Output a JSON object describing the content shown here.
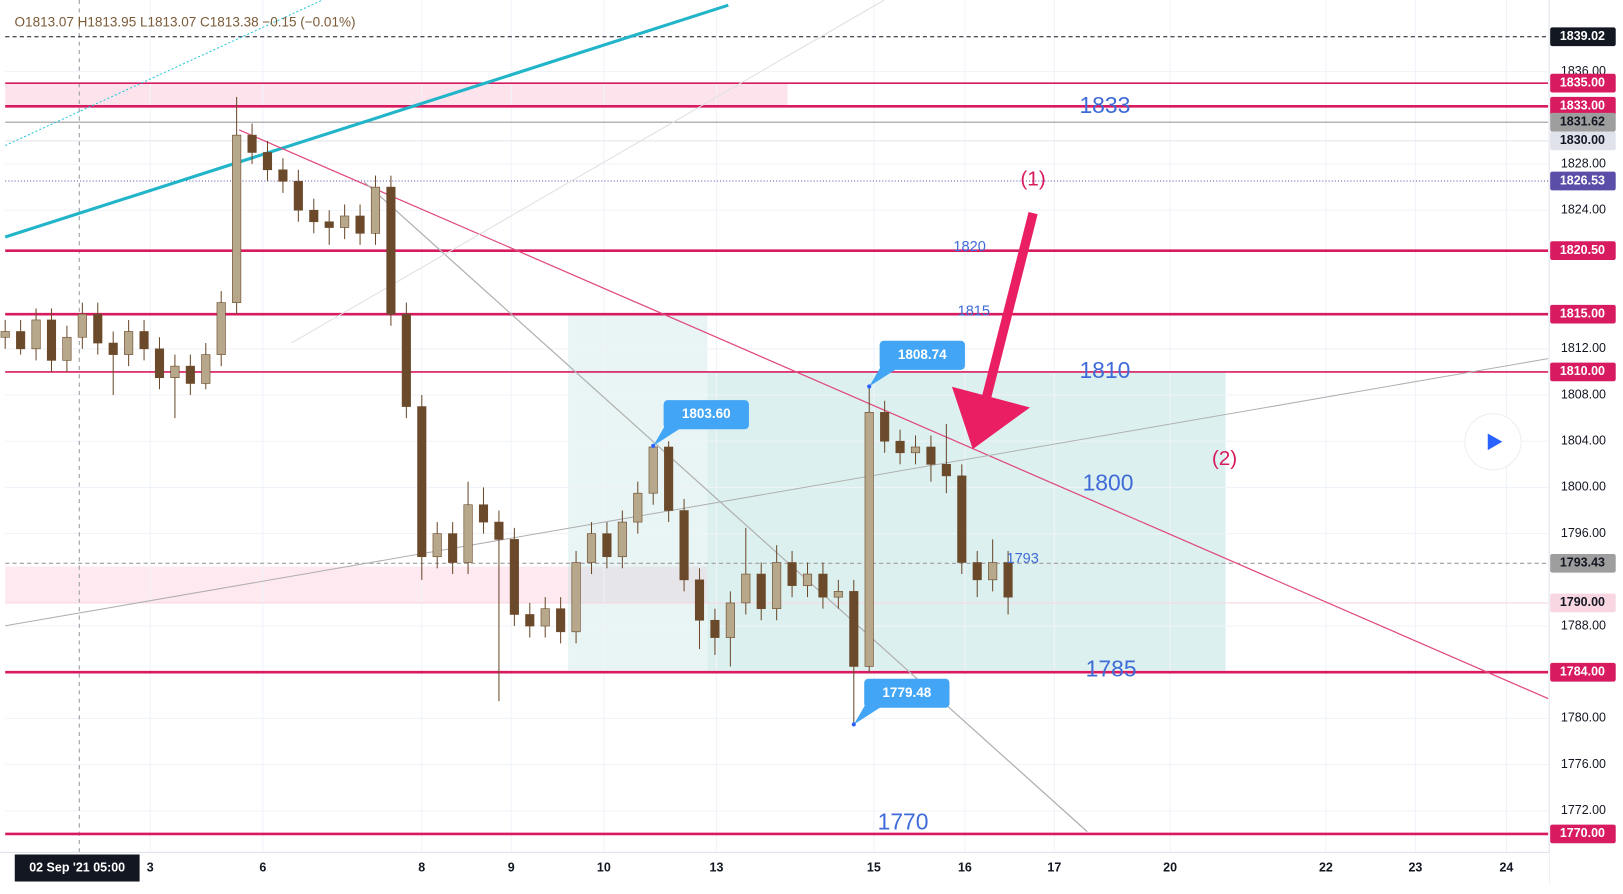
{
  "chart_data": {
    "type": "candlestick",
    "header": "O1813.07 H1813.95 L1813.07 C1813.38 −0.15 (−0.01%)",
    "up_color": "#b7a88c",
    "down_color": "#6b4a2b",
    "xlim": [
      0,
      100
    ],
    "ylim": [
      1768.4,
      1842.2
    ],
    "x": [
      0,
      1,
      2,
      3,
      4,
      5,
      6,
      7,
      8,
      9,
      10,
      11,
      12,
      13,
      14,
      15,
      16,
      17,
      18,
      19,
      20,
      21,
      22,
      23,
      24,
      25,
      26,
      27,
      28,
      29,
      30,
      31,
      32,
      33,
      34,
      35,
      36,
      37,
      38,
      39,
      40,
      41,
      42,
      43,
      44,
      45,
      46,
      47,
      48,
      49,
      50,
      51,
      52,
      53,
      54,
      55,
      56,
      57,
      58,
      59,
      60,
      61,
      62,
      63,
      64,
      65
    ],
    "open": [
      1813.0,
      1813.5,
      1812.0,
      1814.5,
      1811.0,
      1813.0,
      1815.0,
      1812.5,
      1811.5,
      1813.5,
      1812.0,
      1809.5,
      1810.5,
      1809.0,
      1811.5,
      1816.0,
      1830.5,
      1829.0,
      1827.5,
      1826.5,
      1824.0,
      1823.0,
      1822.5,
      1823.5,
      1822.0,
      1826.0,
      1815.0,
      1807.0,
      1794.0,
      1796.0,
      1793.5,
      1798.5,
      1797.0,
      1795.5,
      1789.0,
      1788.0,
      1789.5,
      1787.5,
      1793.5,
      1796.0,
      1794.0,
      1797.0,
      1799.5,
      1803.5,
      1798.0,
      1792.0,
      1788.5,
      1787.0,
      1790.0,
      1792.5,
      1789.5,
      1793.5,
      1791.5,
      1792.5,
      1790.5,
      1791.0,
      1784.5,
      1806.5,
      1804.0,
      1803.0,
      1803.5,
      1802.0,
      1801.0,
      1793.5,
      1792.0,
      1793.5
    ],
    "high": [
      1814.5,
      1814.5,
      1815.5,
      1815.5,
      1814.0,
      1816.0,
      1816.0,
      1813.5,
      1814.5,
      1814.5,
      1813.0,
      1811.5,
      1811.5,
      1812.5,
      1817.0,
      1833.8,
      1831.5,
      1830.0,
      1828.5,
      1827.5,
      1825.0,
      1824.0,
      1824.5,
      1824.5,
      1827.0,
      1827.0,
      1816.0,
      1808.0,
      1797.0,
      1797.0,
      1800.5,
      1800.0,
      1798.0,
      1796.5,
      1790.0,
      1790.5,
      1790.5,
      1794.5,
      1797.0,
      1797.0,
      1798.0,
      1800.5,
      1803.6,
      1804.0,
      1799.0,
      1793.0,
      1789.5,
      1791.0,
      1796.5,
      1793.5,
      1795.0,
      1794.5,
      1793.5,
      1793.5,
      1792.0,
      1792.0,
      1808.7,
      1807.5,
      1805.0,
      1804.5,
      1804.5,
      1805.5,
      1802.0,
      1794.5,
      1795.5,
      1794.5
    ],
    "low": [
      1812.0,
      1811.5,
      1811.0,
      1810.0,
      1810.0,
      1812.0,
      1811.5,
      1808.0,
      1810.5,
      1811.0,
      1808.5,
      1806.0,
      1808.0,
      1808.5,
      1810.5,
      1815.0,
      1828.0,
      1826.5,
      1825.5,
      1823.0,
      1822.0,
      1821.0,
      1821.5,
      1821.0,
      1821.0,
      1814.0,
      1806.0,
      1792.0,
      1793.0,
      1792.5,
      1792.5,
      1796.0,
      1781.5,
      1788.0,
      1787.0,
      1787.0,
      1786.5,
      1786.5,
      1792.5,
      1793.0,
      1793.0,
      1796.0,
      1798.5,
      1797.0,
      1791.0,
      1786.0,
      1785.5,
      1784.5,
      1789.0,
      1788.5,
      1788.5,
      1790.5,
      1790.5,
      1789.5,
      1789.5,
      1779.5,
      1784.0,
      1803.0,
      1802.0,
      1802.0,
      1800.5,
      1799.5,
      1792.5,
      1790.5,
      1791.0,
      1789.0
    ],
    "close": [
      1813.5,
      1812.0,
      1814.5,
      1811.0,
      1813.0,
      1815.0,
      1812.5,
      1811.5,
      1813.5,
      1812.0,
      1809.5,
      1810.5,
      1809.0,
      1811.5,
      1816.0,
      1830.5,
      1829.0,
      1827.5,
      1826.5,
      1824.0,
      1823.0,
      1822.5,
      1823.5,
      1822.0,
      1826.0,
      1815.0,
      1807.0,
      1794.0,
      1796.0,
      1793.5,
      1798.5,
      1797.0,
      1795.5,
      1789.0,
      1788.0,
      1789.5,
      1787.5,
      1793.5,
      1796.0,
      1794.0,
      1797.0,
      1799.5,
      1803.5,
      1798.0,
      1792.0,
      1788.5,
      1787.0,
      1790.0,
      1792.5,
      1789.5,
      1793.5,
      1791.5,
      1792.5,
      1790.5,
      1791.0,
      1784.5,
      1806.5,
      1804.0,
      1803.0,
      1803.5,
      1802.0,
      1801.0,
      1793.5,
      1792.0,
      1793.5,
      1790.5
    ],
    "yticks": [
      {
        "value": 1772,
        "label": "1772.00"
      },
      {
        "value": 1776,
        "label": "1776.00"
      },
      {
        "value": 1780,
        "label": "1780.00"
      },
      {
        "value": 1788,
        "label": "1788.00"
      },
      {
        "value": 1796,
        "label": "1796.00"
      },
      {
        "value": 1800,
        "label": "1800.00"
      },
      {
        "value": 1804,
        "label": "1804.00"
      },
      {
        "value": 1808,
        "label": "1808.00"
      },
      {
        "value": 1812,
        "label": "1812.00"
      },
      {
        "value": 1824,
        "label": "1824.00"
      },
      {
        "value": 1828,
        "label": "1828.00"
      },
      {
        "value": 1836,
        "label": "1836.00"
      }
    ],
    "xticks": [
      {
        "value": 9.4,
        "label": "3"
      },
      {
        "value": 16.7,
        "label": "6"
      },
      {
        "value": 27.0,
        "label": "8"
      },
      {
        "value": 32.8,
        "label": "9"
      },
      {
        "value": 38.8,
        "label": "10"
      },
      {
        "value": 46.1,
        "label": "13"
      },
      {
        "value": 56.3,
        "label": "15"
      },
      {
        "value": 62.2,
        "label": "16"
      },
      {
        "value": 68.0,
        "label": "17"
      },
      {
        "value": 75.5,
        "label": "20"
      },
      {
        "value": 85.6,
        "label": "22"
      },
      {
        "value": 91.4,
        "label": "23"
      },
      {
        "value": 97.3,
        "label": "24"
      }
    ],
    "crosshair": {
      "x": 4.8,
      "label": "02 Sep '21   05:00"
    },
    "price_lines": [
      {
        "value": 1839.02,
        "label": "1839.02",
        "color": "#131722",
        "text_color": "#ffffff",
        "style": "dashed"
      },
      {
        "value": 1835,
        "label": "1835.00",
        "color": "#d81b60",
        "text_color": "#ffffff",
        "style": "solid"
      },
      {
        "value": 1833,
        "label": "1833.00",
        "color": "#d81b60",
        "text_color": "#ffffff",
        "style": "bold"
      },
      {
        "value": 1831.62,
        "label": "1831.62",
        "color": "#9e9e9e",
        "text_color": "#131722",
        "style": "thin"
      },
      {
        "value": 1830,
        "label": "1830.00",
        "color": "#e0e3eb",
        "text_color": "#131722",
        "style": "thin"
      },
      {
        "value": 1826.53,
        "label": "1826.53",
        "color": "#5b4ea8",
        "text_color": "#ffffff",
        "style": "dotted"
      },
      {
        "value": 1820.5,
        "label": "1820.50",
        "color": "#d81b60",
        "text_color": "#ffffff",
        "style": "bold"
      },
      {
        "value": 1815,
        "label": "1815.00",
        "color": "#d81b60",
        "text_color": "#ffffff",
        "style": "bold"
      },
      {
        "value": 1810,
        "label": "1810.00",
        "color": "#d81b60",
        "text_color": "#ffffff",
        "style": "solid"
      },
      {
        "value": 1793.43,
        "label": "1793.43",
        "color": "#9e9e9e",
        "text_color": "#131722",
        "style": "dashed"
      },
      {
        "value": 1790,
        "label": "1790.00",
        "color": "#f8d7e2",
        "text_color": "#131722",
        "style": "thin"
      },
      {
        "value": 1784,
        "label": "1784.00",
        "color": "#d81b60",
        "text_color": "#ffffff",
        "style": "bold"
      },
      {
        "value": 1770,
        "label": "1770.00",
        "color": "#d81b60",
        "text_color": "#ffffff",
        "style": "bold"
      }
    ],
    "callouts": [
      {
        "x": 56,
        "value": 1808.74
      },
      {
        "x": 42,
        "value": 1803.6,
        "label": "1803.60"
      },
      {
        "x": 55,
        "value": 1779.48
      }
    ],
    "notes": [
      "1833",
      "1820",
      "1815",
      "1810",
      "1800",
      "1785",
      "1770",
      "1793",
      "(1)",
      "(2)"
    ]
  }
}
